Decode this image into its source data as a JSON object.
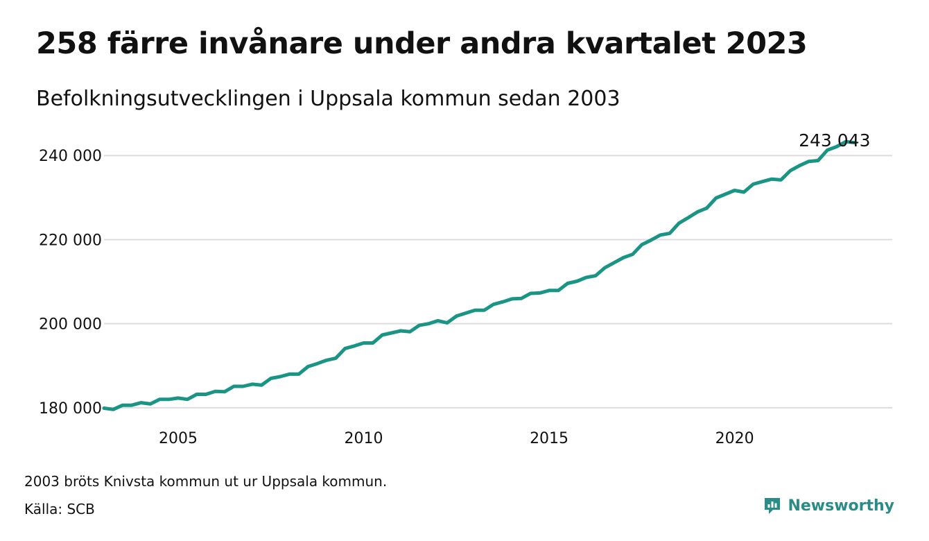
{
  "title": "258 färre invånare under andra kvartalet 2023",
  "subtitle": "Befolkningsutvecklingen i Uppsala kommun sedan 2003",
  "note": "2003 bröts Knivsta kommun ut ur Uppsala kommun.",
  "source": "Källa: SCB",
  "brand": {
    "name": "Newsworthy"
  },
  "colors": {
    "line": "#1a9585",
    "grid": "#dddddd",
    "text": "#111111",
    "brand": "#2a8c86"
  },
  "chart_data": {
    "type": "line",
    "title": "258 färre invånare under andra kvartalet 2023",
    "subtitle": "Befolkningsutvecklingen i Uppsala kommun sedan 2003",
    "xlabel": "",
    "ylabel": "",
    "xlim": [
      2003,
      2024.25
    ],
    "ylim": [
      178000,
      244000
    ],
    "xticks": [
      2005,
      2010,
      2015,
      2020
    ],
    "xtick_labels": [
      "2005",
      "2010",
      "2015",
      "2020"
    ],
    "yticks": [
      180000,
      200000,
      220000,
      240000
    ],
    "ytick_labels": [
      "180 000",
      "200 000",
      "220 000",
      "240 000"
    ],
    "grid": true,
    "legend": "none",
    "end_label": "243 043",
    "series": [
      {
        "x": [
          "2003-01",
          "2003-04",
          "2003-07",
          "2003-10",
          "2004-01",
          "2004-04",
          "2004-07",
          "2004-10",
          "2005-01",
          "2005-04",
          "2005-07",
          "2005-10",
          "2006-01",
          "2006-04",
          "2006-07",
          "2006-10",
          "2007-01",
          "2007-04",
          "2007-07",
          "2007-10",
          "2008-01",
          "2008-04",
          "2008-07",
          "2008-10",
          "2009-01",
          "2009-04",
          "2009-07",
          "2009-10",
          "2010-01",
          "2010-04",
          "2010-07",
          "2010-10",
          "2011-01",
          "2011-04",
          "2011-07",
          "2011-10",
          "2012-01",
          "2012-04",
          "2012-07",
          "2012-10",
          "2013-01",
          "2013-04",
          "2013-07",
          "2013-10",
          "2014-01",
          "2014-04",
          "2014-07",
          "2014-10",
          "2015-01",
          "2015-04",
          "2015-07",
          "2015-10",
          "2016-01",
          "2016-04",
          "2016-07",
          "2016-10",
          "2017-01",
          "2017-04",
          "2017-07",
          "2017-10",
          "2018-01",
          "2018-04",
          "2018-07",
          "2018-10",
          "2019-01",
          "2019-04",
          "2019-07",
          "2019-10",
          "2020-01",
          "2020-04",
          "2020-07",
          "2020-10",
          "2021-01",
          "2021-04",
          "2021-07",
          "2021-10",
          "2022-01",
          "2022-04",
          "2022-07",
          "2022-10",
          "2023-01",
          "2023-04"
        ],
        "y": [
          179900,
          179600,
          180600,
          180600,
          181200,
          180900,
          182000,
          182000,
          182300,
          182000,
          183200,
          183200,
          183900,
          183800,
          185100,
          185100,
          185600,
          185400,
          187000,
          187400,
          188000,
          188000,
          189800,
          190500,
          191300,
          191800,
          194100,
          194700,
          195400,
          195400,
          197300,
          197800,
          198300,
          198100,
          199600,
          200000,
          200700,
          200200,
          201800,
          202500,
          203200,
          203200,
          204600,
          205200,
          205900,
          206000,
          207200,
          207300,
          207900,
          207900,
          209600,
          210100,
          211000,
          211400,
          213300,
          214500,
          215700,
          216500,
          218800,
          219900,
          221100,
          221500,
          223900,
          225200,
          226600,
          227500,
          229900,
          230800,
          231700,
          231300,
          233200,
          233800,
          234400,
          234200,
          236400,
          237600,
          238600,
          238800,
          241300,
          242100,
          243301,
          243043
        ]
      }
    ]
  }
}
